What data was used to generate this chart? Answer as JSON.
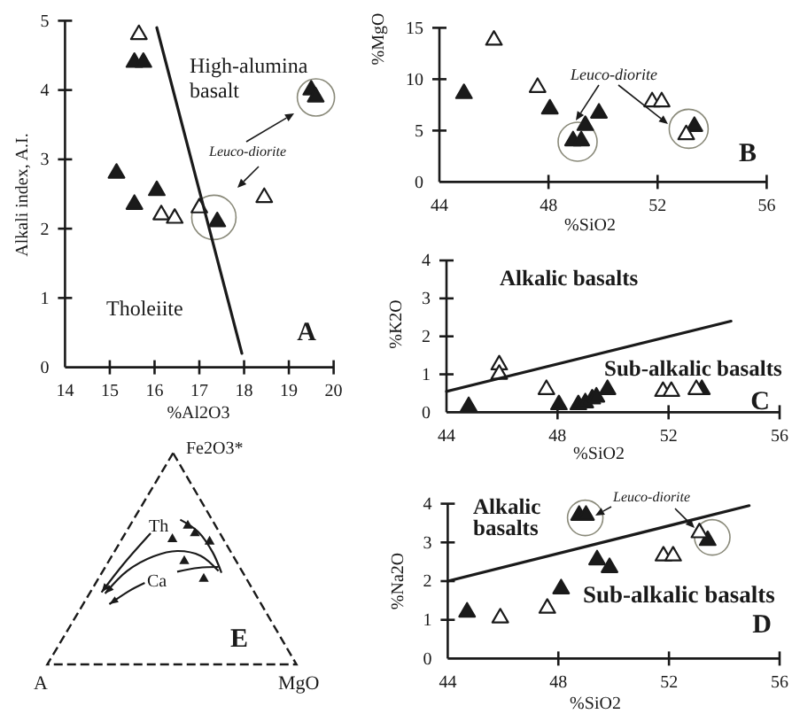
{
  "chart_data": [
    {
      "type": "scatter",
      "title": "A",
      "xlabel": "%Al2O3",
      "ylabel": "Alkali index, A.I.",
      "xlim": [
        14,
        20
      ],
      "ylim": [
        0,
        5
      ],
      "xticks": [
        14,
        15,
        16,
        17,
        18,
        19,
        20
      ],
      "yticks": [
        0,
        1,
        2,
        3,
        4,
        5
      ],
      "marker": "triangle",
      "annotations": [
        "High-alumina basalt",
        "Leuco-diorite",
        "Tholeiite"
      ],
      "series": [
        {
          "color": "#1a1a1a",
          "x": [
            15.55,
            15.75,
            15.15,
            15.55,
            16.05,
            17.4,
            19.5,
            19.6
          ],
          "values": [
            4.4,
            4.4,
            2.8,
            2.35,
            2.55,
            2.1,
            4.0,
            3.9
          ]
        },
        {
          "color": "#ffffff",
          "x": [
            15.65,
            16.15,
            16.45,
            17.0,
            18.45
          ],
          "values": [
            4.8,
            2.2,
            2.15,
            2.3,
            2.45
          ]
        },
        {
          "type": "line",
          "color": "#1a1a1a",
          "marker": "none",
          "x": [
            16.05,
            17.95
          ],
          "values": [
            4.9,
            0.2
          ]
        }
      ]
    },
    {
      "type": "scatter",
      "title": "B",
      "xlabel": "%SiO2",
      "ylabel": "%MgO",
      "xlim": [
        44,
        56
      ],
      "ylim": [
        0,
        15
      ],
      "xticks": [
        44,
        48,
        52,
        56
      ],
      "yticks": [
        0,
        5,
        10,
        15
      ],
      "marker": "triangle",
      "annotations": [
        "Leuco-diorite"
      ],
      "series": [
        {
          "color": "#1a1a1a",
          "x": [
            44.9,
            48.05,
            48.9,
            49.2,
            49.35,
            49.85,
            53.35
          ],
          "values": [
            8.6,
            7.1,
            4.0,
            4.0,
            5.5,
            6.7,
            5.4
          ]
        },
        {
          "color": "#ffffff",
          "x": [
            46.0,
            47.6,
            51.8,
            52.15,
            53.05
          ],
          "values": [
            13.8,
            9.2,
            7.8,
            7.8,
            4.6
          ]
        }
      ]
    },
    {
      "type": "scatter",
      "title": "C",
      "xlabel": "%SiO2",
      "ylabel": "%K2O",
      "xlim": [
        44,
        56
      ],
      "ylim": [
        0,
        4
      ],
      "xticks": [
        44,
        48,
        52,
        56
      ],
      "yticks": [
        0,
        1,
        2,
        3,
        4
      ],
      "marker": "triangle",
      "annotations": [
        "Alkalic basalts",
        "Sub-alkalic basalts"
      ],
      "series": [
        {
          "color": "#1a1a1a",
          "x": [
            44.8,
            48.05,
            48.75,
            49.0,
            49.25,
            49.4,
            49.8,
            53.2
          ],
          "values": [
            0.15,
            0.2,
            0.2,
            0.25,
            0.35,
            0.4,
            0.6,
            0.6
          ]
        },
        {
          "color": "#ffffff",
          "x": [
            45.9,
            45.9,
            47.6,
            51.8,
            52.1,
            53.0
          ],
          "values": [
            1.25,
            1.0,
            0.6,
            0.55,
            0.55,
            0.6
          ]
        },
        {
          "type": "line",
          "color": "#1a1a1a",
          "marker": "none",
          "x": [
            44,
            54.25
          ],
          "values": [
            0.55,
            2.4
          ]
        }
      ]
    },
    {
      "type": "scatter",
      "title": "D",
      "xlabel": "%SiO2",
      "ylabel": "%Na2O",
      "xlim": [
        44,
        56
      ],
      "ylim": [
        0,
        4
      ],
      "xticks": [
        44,
        48,
        52,
        56
      ],
      "yticks": [
        0,
        1,
        2,
        3,
        4
      ],
      "marker": "triangle",
      "annotations": [
        "Alkalic basalts",
        "Leuco-diorite",
        "Sub-alkalic basalts"
      ],
      "series": [
        {
          "color": "#1a1a1a",
          "x": [
            44.7,
            48.1,
            48.75,
            49.0,
            49.4,
            49.85,
            53.4
          ],
          "values": [
            1.2,
            1.8,
            3.7,
            3.7,
            2.55,
            2.35,
            3.05
          ]
        },
        {
          "color": "#ffffff",
          "x": [
            45.9,
            47.6,
            51.8,
            52.15,
            53.1
          ],
          "values": [
            1.05,
            1.3,
            2.65,
            2.65,
            3.25
          ]
        },
        {
          "type": "line",
          "color": "#1a1a1a",
          "marker": "none",
          "x": [
            44,
            54.9
          ],
          "values": [
            2.0,
            3.95
          ]
        }
      ]
    },
    {
      "type": "other",
      "title": "E",
      "annotations": [
        "Fe2O3*",
        "A",
        "MgO",
        "Th",
        "Ca"
      ]
    }
  ]
}
